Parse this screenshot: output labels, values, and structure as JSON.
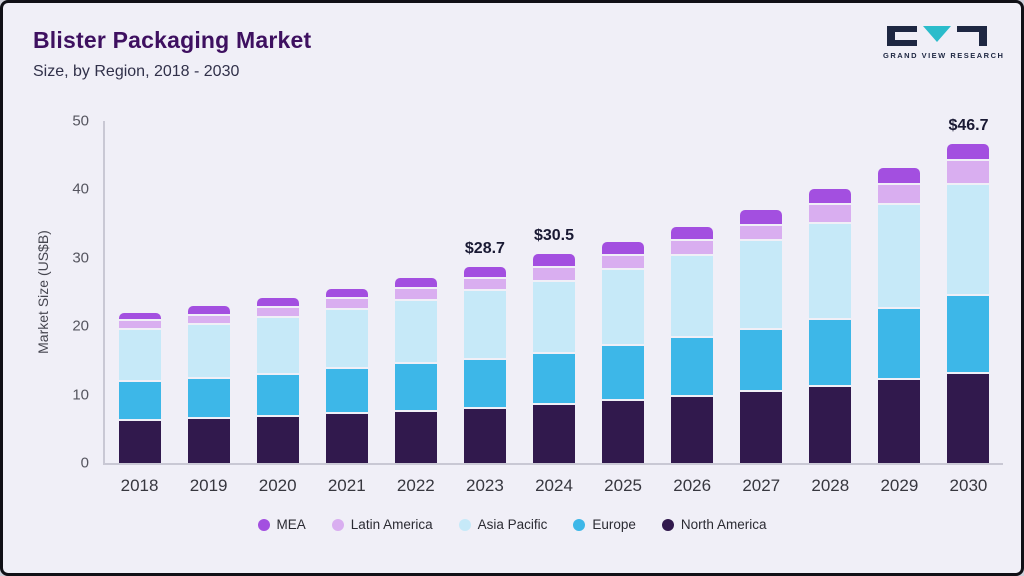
{
  "header": {
    "title": "Blister Packaging Market",
    "subtitle": "Size, by Region, 2018 - 2030"
  },
  "logo": {
    "text": "GRAND VIEW RESEARCH"
  },
  "brand": {
    "navy": "#1e2742",
    "teal": "#2bbccb"
  },
  "chart_data": {
    "type": "bar",
    "stacked": true,
    "title": "Blister Packaging Market Size, by Region, 2018 - 2030",
    "ylabel": "Market Size (US$B)",
    "xlabel": "",
    "ylim": [
      0,
      50
    ],
    "yticks": [
      0,
      10,
      20,
      30,
      40,
      50
    ],
    "grid": false,
    "legend_position": "bottom",
    "categories": [
      "2018",
      "2019",
      "2020",
      "2021",
      "2022",
      "2023",
      "2024",
      "2025",
      "2026",
      "2027",
      "2028",
      "2029",
      "2030"
    ],
    "series": [
      {
        "name": "North America",
        "color": "#31194d",
        "values": [
          6.5,
          6.8,
          7.0,
          7.5,
          7.8,
          8.2,
          8.8,
          9.4,
          10.0,
          10.7,
          11.4,
          12.4,
          13.3
        ]
      },
      {
        "name": "Europe",
        "color": "#3db7e8",
        "values": [
          5.7,
          5.8,
          6.2,
          6.5,
          6.9,
          7.2,
          7.5,
          8.0,
          8.5,
          9.1,
          9.8,
          10.4,
          11.4
        ]
      },
      {
        "name": "Asia Pacific",
        "color": "#c6e9f8",
        "values": [
          7.6,
          7.9,
          8.3,
          8.7,
          9.3,
          10.0,
          10.4,
          11.1,
          12.0,
          13.0,
          14.1,
          15.2,
          16.3
        ]
      },
      {
        "name": "Latin America",
        "color": "#d9aef0",
        "values": [
          1.2,
          1.3,
          1.5,
          1.6,
          1.7,
          1.8,
          2.1,
          2.1,
          2.2,
          2.2,
          2.7,
          3.0,
          3.5
        ]
      },
      {
        "name": "MEA",
        "color": "#a34fe0",
        "values": [
          1.0,
          1.2,
          1.2,
          1.2,
          1.3,
          1.5,
          1.7,
          1.7,
          1.8,
          2.0,
          2.0,
          2.2,
          2.2
        ]
      }
    ],
    "annotations": [
      {
        "category": "2023",
        "label": "$28.7"
      },
      {
        "category": "2024",
        "label": "$30.5"
      },
      {
        "category": "2030",
        "label": "$46.7"
      }
    ]
  },
  "legend": {
    "items": [
      {
        "label": "MEA",
        "color": "#a34fe0"
      },
      {
        "label": "Latin America",
        "color": "#d9aef0"
      },
      {
        "label": "Asia Pacific",
        "color": "#c6e9f8"
      },
      {
        "label": "Europe",
        "color": "#3db7e8"
      },
      {
        "label": "North America",
        "color": "#31194d"
      }
    ]
  }
}
